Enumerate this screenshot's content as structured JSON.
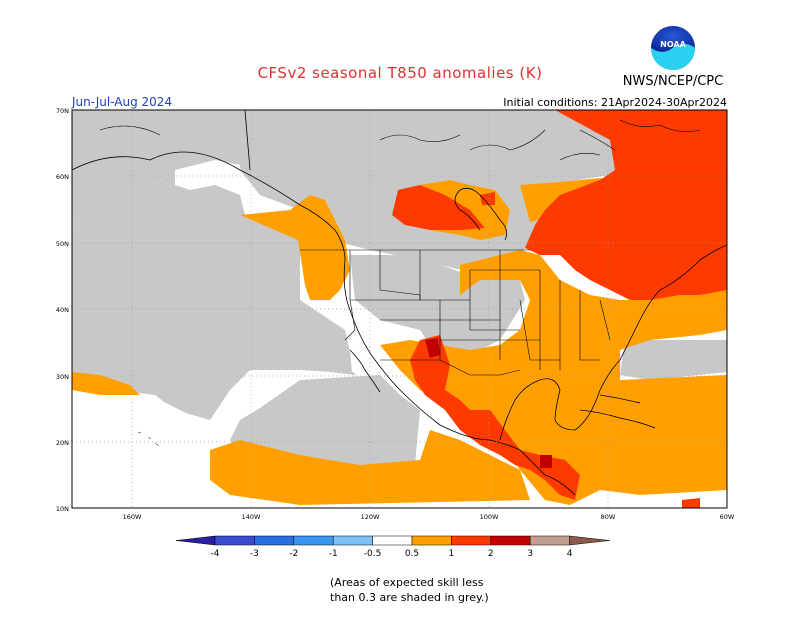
{
  "header": {
    "title": "CFSv2 seasonal T850 anomalies (K)",
    "agency": "NWS/NCEP/CPC",
    "logo_text": "NOAA",
    "period": "Jun-Jul-Aug 2024",
    "initial_conditions": "Initial conditions: 21Apr2024-30Apr2024"
  },
  "map": {
    "lat_labels": [
      "70N",
      "60N",
      "50N",
      "40N",
      "30N",
      "20N",
      "10N"
    ],
    "lon_labels": [
      "160W",
      "140W",
      "120W",
      "100W",
      "80W",
      "60W"
    ],
    "extent": {
      "lon": [
        -170,
        -60
      ],
      "lat": [
        10,
        70
      ]
    },
    "colors": {
      "land_grey": "#c8c8c8",
      "ocean": "#ffffff",
      "orange": "#ffa000",
      "red": "#ff3a00",
      "dark_red": "#c00000",
      "outline": "#000000"
    }
  },
  "colorbar": {
    "tick_labels": [
      "-4",
      "-3",
      "-2",
      "-1",
      "-0.5",
      "0.5",
      "1",
      "2",
      "3",
      "4"
    ],
    "bins": [
      {
        "color": "#2a1fa0"
      },
      {
        "color": "#3a4bd0"
      },
      {
        "color": "#2a6ee0"
      },
      {
        "color": "#3a96f0"
      },
      {
        "color": "#7ec0f8"
      },
      {
        "color": "#ffffff"
      },
      {
        "color": "#ffa000"
      },
      {
        "color": "#ff3a00"
      },
      {
        "color": "#c00000"
      },
      {
        "color": "#c0a090"
      },
      {
        "color": "#8a5a4a"
      }
    ]
  },
  "footnote": {
    "line1": "(Areas of expected skill less",
    "line2": "than 0.3 are shaded in grey.)"
  }
}
